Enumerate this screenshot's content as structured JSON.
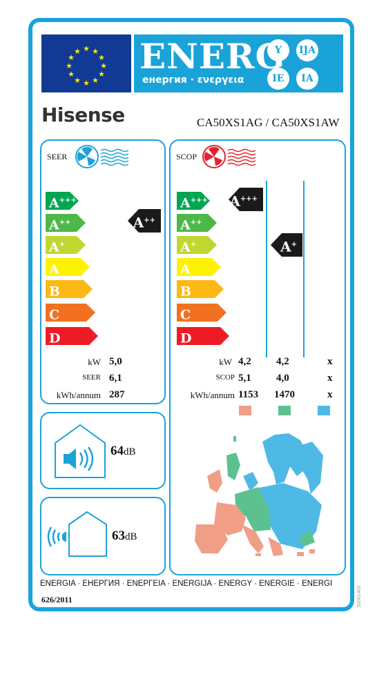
{
  "header": {
    "energy_word": "ENERG",
    "energy_subtitle": "енергия · ενεργεια",
    "suffixes": [
      "Y",
      "IJA",
      "IE",
      "IA"
    ]
  },
  "supplier": {
    "brand": "Hisense",
    "model": "CA50XS1AG / CA50XS1AW"
  },
  "colors": {
    "frame": "#1aa3d9",
    "eu_blue": "#103a93",
    "classes": [
      "#00a651",
      "#4cb848",
      "#bfd730",
      "#fff200",
      "#fdb913",
      "#f37021",
      "#ed1c24"
    ],
    "zone_warmer": "#f09e86",
    "zone_average": "#5cc18f",
    "zone_colder": "#4fb9e6"
  },
  "icons": {
    "cooling": "fan-cold-icon",
    "heating": "fan-hot-icon",
    "indoor": "speaker-house-icon",
    "outdoor": "sound-waves-house-icon"
  },
  "cooling": {
    "label": "SEER",
    "classes": [
      {
        "letter": "A",
        "plus": "+++"
      },
      {
        "letter": "A",
        "plus": "++"
      },
      {
        "letter": "A",
        "plus": "+"
      },
      {
        "letter": "A",
        "plus": ""
      },
      {
        "letter": "B",
        "plus": ""
      },
      {
        "letter": "C",
        "plus": ""
      },
      {
        "letter": "D",
        "plus": ""
      }
    ],
    "rating": {
      "letter": "A",
      "plus": "++"
    },
    "rows": [
      {
        "label": "kW",
        "value": "5,0"
      },
      {
        "label": "SEER",
        "value": "6,1"
      },
      {
        "label": "kWh/annum",
        "value": "287"
      }
    ]
  },
  "heating": {
    "label": "SCOP",
    "classes": [
      {
        "letter": "A",
        "plus": "+++"
      },
      {
        "letter": "A",
        "plus": "++"
      },
      {
        "letter": "A",
        "plus": "+"
      },
      {
        "letter": "A",
        "plus": ""
      },
      {
        "letter": "B",
        "plus": ""
      },
      {
        "letter": "C",
        "plus": ""
      },
      {
        "letter": "D",
        "plus": ""
      }
    ],
    "ratings": [
      {
        "letter": "A",
        "plus": "+++"
      },
      {
        "letter": "A",
        "plus": "+"
      }
    ],
    "rows": [
      {
        "label": "kW",
        "values": [
          "4,2",
          "4,2",
          "x"
        ]
      },
      {
        "label": "SCOP",
        "values": [
          "5,1",
          "4,0",
          "x"
        ]
      },
      {
        "label": "kWh/annum",
        "values": [
          "1153",
          "1470",
          "x"
        ]
      }
    ]
  },
  "noise": {
    "indoor_value": "64",
    "outdoor_value": "63",
    "unit": "dB"
  },
  "footer": {
    "languages": "ENERGIA · ЕНЕРГИЯ · ΕΝΕΡΓΕΙΑ · ENERGIJA · ENERGY · ENERGIE · ENERGI",
    "regulation": "626/2011",
    "side_code": "50001403"
  }
}
